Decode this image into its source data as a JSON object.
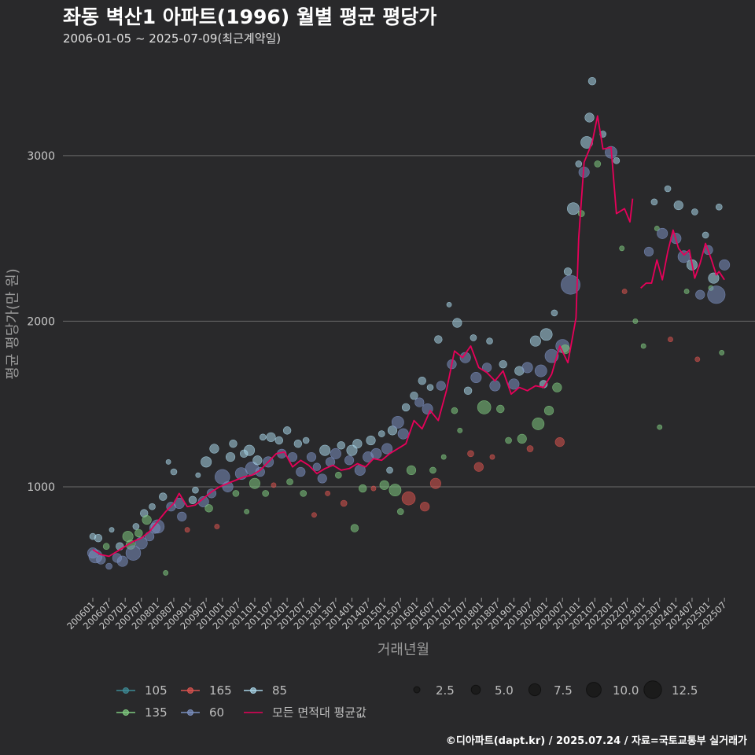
{
  "header": {
    "title": "좌동 벽산1 아파트(1996) 월별 평균 평당가",
    "subtitle": "2006-01-05 ~ 2025-07-09(최근계약일)"
  },
  "caption": "©디아파트(dapt.kr) / 2025.07.24 / 자료=국토교통부 실거래가",
  "chart_data": {
    "type": "scatter",
    "xlabel": "거래년월",
    "ylabel": "평균 평당가(만 원)",
    "ylim": [
      330,
      3560
    ],
    "yticks": [
      1000,
      2000,
      3000
    ],
    "grid": true,
    "x_range": [
      "2006-01",
      "2025-09"
    ],
    "x_ticks": [
      "200601",
      "200607",
      "200701",
      "200707",
      "200801",
      "200807",
      "200901",
      "200907",
      "201001",
      "201007",
      "201101",
      "201107",
      "201201",
      "201207",
      "201301",
      "201307",
      "201401",
      "201407",
      "201501",
      "201507",
      "201601",
      "201607",
      "201701",
      "201707",
      "201801",
      "201807",
      "201901",
      "201907",
      "202001",
      "202007",
      "202101",
      "202107",
      "202201",
      "202207",
      "202301",
      "202307",
      "202401",
      "202407",
      "202501",
      "202507"
    ],
    "legend_position": "bottom",
    "series": [
      {
        "name": "105",
        "color": "#3d8a96"
      },
      {
        "name": "135",
        "color": "#7fc97f"
      },
      {
        "name": "165",
        "color": "#d9534f"
      },
      {
        "name": "60",
        "color": "#7b8fbf"
      },
      {
        "name": "85",
        "color": "#a7d3e6"
      },
      {
        "name": "모든 면적대 평균값",
        "color": "#e8005a"
      }
    ],
    "size_legend": [
      2.5,
      5.0,
      7.5,
      10.0,
      12.5
    ],
    "points": [
      [
        "2006-01",
        600,
        "60",
        6
      ],
      [
        "2006-01",
        700,
        "85",
        3
      ],
      [
        "2006-02",
        580,
        "60",
        8
      ],
      [
        "2006-03",
        690,
        "85",
        4
      ],
      [
        "2006-04",
        560,
        "60",
        5
      ],
      [
        "2006-06",
        640,
        "135",
        3
      ],
      [
        "2006-07",
        520,
        "60",
        3
      ],
      [
        "2006-08",
        740,
        "85",
        2
      ],
      [
        "2006-10",
        570,
        "60",
        5
      ],
      [
        "2006-11",
        640,
        "85",
        4
      ],
      [
        "2006-12",
        550,
        "60",
        6
      ],
      [
        "2007-02",
        700,
        "135",
        6
      ],
      [
        "2007-03",
        650,
        "135",
        5
      ],
      [
        "2007-04",
        600,
        "60",
        9
      ],
      [
        "2007-05",
        760,
        "85",
        3
      ],
      [
        "2007-06",
        720,
        "135",
        4
      ],
      [
        "2007-07",
        660,
        "60",
        7
      ],
      [
        "2007-08",
        840,
        "85",
        4
      ],
      [
        "2007-09",
        800,
        "135",
        5
      ],
      [
        "2007-10",
        700,
        "60",
        5
      ],
      [
        "2007-11",
        880,
        "85",
        3
      ],
      [
        "2007-12",
        750,
        "60",
        6
      ],
      [
        "2008-01",
        760,
        "60",
        8
      ],
      [
        "2008-03",
        940,
        "85",
        4
      ],
      [
        "2008-04",
        480,
        "135",
        2
      ],
      [
        "2008-05",
        1150,
        "85",
        2
      ],
      [
        "2008-06",
        880,
        "60",
        5
      ],
      [
        "2008-07",
        1090,
        "85",
        3
      ],
      [
        "2008-09",
        900,
        "60",
        6
      ],
      [
        "2008-10",
        820,
        "60",
        5
      ],
      [
        "2008-12",
        740,
        "165",
        2
      ],
      [
        "2009-02",
        920,
        "85",
        4
      ],
      [
        "2009-03",
        980,
        "85",
        3
      ],
      [
        "2009-04",
        1070,
        "85",
        2
      ],
      [
        "2009-06",
        910,
        "60",
        6
      ],
      [
        "2009-07",
        1150,
        "85",
        6
      ],
      [
        "2009-08",
        870,
        "135",
        4
      ],
      [
        "2009-09",
        960,
        "60",
        5
      ],
      [
        "2009-10",
        1230,
        "85",
        5
      ],
      [
        "2009-11",
        760,
        "165",
        2
      ],
      [
        "2010-01",
        1060,
        "60",
        9
      ],
      [
        "2010-03",
        1000,
        "60",
        6
      ],
      [
        "2010-04",
        1180,
        "85",
        5
      ],
      [
        "2010-05",
        1260,
        "85",
        4
      ],
      [
        "2010-06",
        960,
        "135",
        3
      ],
      [
        "2010-08",
        1080,
        "60",
        7
      ],
      [
        "2010-09",
        1200,
        "85",
        4
      ],
      [
        "2010-10",
        850,
        "135",
        2
      ],
      [
        "2010-11",
        1220,
        "85",
        6
      ],
      [
        "2010-12",
        1110,
        "60",
        8
      ],
      [
        "2011-01",
        1020,
        "135",
        6
      ],
      [
        "2011-02",
        1160,
        "85",
        5
      ],
      [
        "2011-03",
        1090,
        "60",
        5
      ],
      [
        "2011-04",
        1300,
        "85",
        3
      ],
      [
        "2011-05",
        960,
        "135",
        3
      ],
      [
        "2011-06",
        1150,
        "60",
        6
      ],
      [
        "2011-07",
        1300,
        "85",
        5
      ],
      [
        "2011-08",
        1010,
        "165",
        2
      ],
      [
        "2011-10",
        1280,
        "85",
        4
      ],
      [
        "2011-11",
        1200,
        "60",
        5
      ],
      [
        "2012-01",
        1340,
        "85",
        4
      ],
      [
        "2012-02",
        1030,
        "135",
        3
      ],
      [
        "2012-03",
        1180,
        "60",
        5
      ],
      [
        "2012-05",
        1260,
        "85",
        4
      ],
      [
        "2012-06",
        1090,
        "60",
        5
      ],
      [
        "2012-07",
        960,
        "135",
        3
      ],
      [
        "2012-08",
        1280,
        "85",
        3
      ],
      [
        "2012-10",
        1180,
        "60",
        5
      ],
      [
        "2012-11",
        830,
        "165",
        2
      ],
      [
        "2012-12",
        1120,
        "60",
        4
      ],
      [
        "2013-02",
        1050,
        "60",
        5
      ],
      [
        "2013-03",
        1220,
        "85",
        6
      ],
      [
        "2013-04",
        960,
        "165",
        2
      ],
      [
        "2013-05",
        1150,
        "60",
        5
      ],
      [
        "2013-07",
        1200,
        "60",
        6
      ],
      [
        "2013-08",
        1070,
        "135",
        3
      ],
      [
        "2013-09",
        1250,
        "85",
        4
      ],
      [
        "2013-10",
        900,
        "165",
        3
      ],
      [
        "2013-12",
        1160,
        "60",
        5
      ],
      [
        "2014-01",
        1220,
        "85",
        6
      ],
      [
        "2014-02",
        750,
        "135",
        4
      ],
      [
        "2014-03",
        1260,
        "85",
        5
      ],
      [
        "2014-04",
        1100,
        "60",
        6
      ],
      [
        "2014-05",
        990,
        "135",
        4
      ],
      [
        "2014-07",
        1180,
        "60",
        6
      ],
      [
        "2014-08",
        1280,
        "85",
        5
      ],
      [
        "2014-09",
        990,
        "165",
        2
      ],
      [
        "2014-10",
        1200,
        "60",
        6
      ],
      [
        "2014-12",
        1320,
        "85",
        3
      ],
      [
        "2015-01",
        1010,
        "135",
        5
      ],
      [
        "2015-02",
        1230,
        "60",
        6
      ],
      [
        "2015-03",
        1100,
        "85",
        3
      ],
      [
        "2015-04",
        1340,
        "85",
        5
      ],
      [
        "2015-05",
        980,
        "135",
        7
      ],
      [
        "2015-06",
        1390,
        "60",
        7
      ],
      [
        "2015-07",
        850,
        "135",
        3
      ],
      [
        "2015-08",
        1320,
        "60",
        6
      ],
      [
        "2015-09",
        1480,
        "85",
        4
      ],
      [
        "2015-10",
        930,
        "165",
        8
      ],
      [
        "2015-11",
        1100,
        "135",
        5
      ],
      [
        "2015-12",
        1550,
        "85",
        4
      ],
      [
        "2016-02",
        1510,
        "60",
        5
      ],
      [
        "2016-03",
        1640,
        "85",
        4
      ],
      [
        "2016-04",
        880,
        "165",
        5
      ],
      [
        "2016-05",
        1470,
        "60",
        6
      ],
      [
        "2016-06",
        1600,
        "85",
        3
      ],
      [
        "2016-07",
        1100,
        "135",
        3
      ],
      [
        "2016-08",
        1020,
        "165",
        6
      ],
      [
        "2016-09",
        1890,
        "85",
        4
      ],
      [
        "2016-10",
        1610,
        "60",
        5
      ],
      [
        "2016-11",
        1180,
        "135",
        2
      ],
      [
        "2017-01",
        2100,
        "85",
        2
      ],
      [
        "2017-02",
        1740,
        "60",
        5
      ],
      [
        "2017-03",
        1460,
        "135",
        3
      ],
      [
        "2017-04",
        1990,
        "85",
        5
      ],
      [
        "2017-05",
        1340,
        "135",
        2
      ],
      [
        "2017-07",
        1780,
        "60",
        6
      ],
      [
        "2017-08",
        1580,
        "85",
        4
      ],
      [
        "2017-09",
        1200,
        "165",
        3
      ],
      [
        "2017-10",
        1900,
        "85",
        3
      ],
      [
        "2017-11",
        1660,
        "60",
        6
      ],
      [
        "2017-12",
        1120,
        "165",
        5
      ],
      [
        "2018-02",
        1480,
        "135",
        8
      ],
      [
        "2018-03",
        1720,
        "60",
        5
      ],
      [
        "2018-04",
        1880,
        "85",
        3
      ],
      [
        "2018-05",
        1180,
        "165",
        2
      ],
      [
        "2018-06",
        1610,
        "60",
        6
      ],
      [
        "2018-08",
        1470,
        "135",
        4
      ],
      [
        "2018-09",
        1740,
        "85",
        4
      ],
      [
        "2018-11",
        1280,
        "135",
        3
      ],
      [
        "2019-01",
        1620,
        "60",
        6
      ],
      [
        "2019-03",
        1700,
        "85",
        5
      ],
      [
        "2019-04",
        1290,
        "135",
        5
      ],
      [
        "2019-06",
        1720,
        "60",
        6
      ],
      [
        "2019-07",
        1230,
        "165",
        3
      ],
      [
        "2019-09",
        1880,
        "85",
        6
      ],
      [
        "2019-10",
        1380,
        "135",
        7
      ],
      [
        "2019-11",
        1700,
        "60",
        7
      ],
      [
        "2019-12",
        1620,
        "85",
        4
      ],
      [
        "2020-01",
        1920,
        "85",
        7
      ],
      [
        "2020-02",
        1460,
        "135",
        5
      ],
      [
        "2020-03",
        1790,
        "60",
        8
      ],
      [
        "2020-04",
        2050,
        "85",
        3
      ],
      [
        "2020-05",
        1600,
        "135",
        5
      ],
      [
        "2020-06",
        1270,
        "165",
        5
      ],
      [
        "2020-07",
        1850,
        "60",
        8
      ],
      [
        "2020-08",
        1830,
        "135",
        5
      ],
      [
        "2020-09",
        2300,
        "85",
        4
      ],
      [
        "2020-10",
        2220,
        "60",
        12
      ],
      [
        "2020-11",
        2680,
        "85",
        7
      ],
      [
        "2021-01",
        2950,
        "85",
        3
      ],
      [
        "2021-02",
        2650,
        "135",
        3
      ],
      [
        "2021-03",
        2900,
        "60",
        6
      ],
      [
        "2021-04",
        3080,
        "85",
        7
      ],
      [
        "2021-05",
        3230,
        "85",
        5
      ],
      [
        "2021-06",
        3450,
        "85",
        4
      ],
      [
        "2021-08",
        2950,
        "135",
        3
      ],
      [
        "2021-10",
        3130,
        "85",
        3
      ],
      [
        "2022-01",
        3020,
        "60",
        7
      ],
      [
        "2022-03",
        2970,
        "85",
        3
      ],
      [
        "2022-05",
        2440,
        "135",
        2
      ],
      [
        "2022-06",
        2180,
        "165",
        2
      ],
      [
        "2022-10",
        2000,
        "135",
        2
      ],
      [
        "2023-01",
        1850,
        "135",
        2
      ],
      [
        "2023-03",
        2420,
        "60",
        5
      ],
      [
        "2023-05",
        2720,
        "85",
        3
      ],
      [
        "2023-06",
        2560,
        "135",
        2
      ],
      [
        "2023-07",
        1360,
        "135",
        2
      ],
      [
        "2023-08",
        2530,
        "60",
        6
      ],
      [
        "2023-10",
        2800,
        "85",
        3
      ],
      [
        "2023-11",
        1890,
        "165",
        2
      ],
      [
        "2024-01",
        2500,
        "60",
        6
      ],
      [
        "2024-02",
        2700,
        "85",
        5
      ],
      [
        "2024-04",
        2390,
        "60",
        7
      ],
      [
        "2024-05",
        2180,
        "135",
        2
      ],
      [
        "2024-07",
        2340,
        "85",
        6
      ],
      [
        "2024-08",
        2660,
        "85",
        3
      ],
      [
        "2024-09",
        1770,
        "165",
        2
      ],
      [
        "2024-10",
        2160,
        "60",
        5
      ],
      [
        "2024-12",
        2520,
        "85",
        3
      ],
      [
        "2025-01",
        2430,
        "60",
        5
      ],
      [
        "2025-02",
        2200,
        "135",
        2
      ],
      [
        "2025-03",
        2260,
        "85",
        6
      ],
      [
        "2025-04",
        2160,
        "60",
        11
      ],
      [
        "2025-05",
        2690,
        "85",
        3
      ],
      [
        "2025-06",
        1810,
        "135",
        2
      ],
      [
        "2025-07",
        2340,
        "60",
        6
      ]
    ],
    "avg_line": [
      [
        "2006-01",
        620
      ],
      [
        "2006-04",
        590
      ],
      [
        "2006-07",
        580
      ],
      [
        "2006-10",
        610
      ],
      [
        "2007-01",
        640
      ],
      [
        "2007-04",
        670
      ],
      [
        "2007-07",
        690
      ],
      [
        "2007-10",
        730
      ],
      [
        "2008-01",
        790
      ],
      [
        "2008-04",
        850
      ],
      [
        "2008-07",
        900
      ],
      [
        "2008-09",
        960
      ],
      [
        "2008-12",
        880
      ],
      [
        "2009-03",
        890
      ],
      [
        "2009-06",
        930
      ],
      [
        "2009-09",
        970
      ],
      [
        "2009-12",
        1000
      ],
      [
        "2010-03",
        1020
      ],
      [
        "2010-06",
        1040
      ],
      [
        "2010-09",
        1060
      ],
      [
        "2010-12",
        1070
      ],
      [
        "2011-03",
        1100
      ],
      [
        "2011-06",
        1150
      ],
      [
        "2011-09",
        1200
      ],
      [
        "2011-12",
        1210
      ],
      [
        "2012-03",
        1120
      ],
      [
        "2012-06",
        1160
      ],
      [
        "2012-09",
        1130
      ],
      [
        "2012-12",
        1080
      ],
      [
        "2013-03",
        1110
      ],
      [
        "2013-06",
        1130
      ],
      [
        "2013-09",
        1100
      ],
      [
        "2013-12",
        1110
      ],
      [
        "2014-03",
        1140
      ],
      [
        "2014-06",
        1120
      ],
      [
        "2014-09",
        1170
      ],
      [
        "2014-12",
        1160
      ],
      [
        "2015-03",
        1200
      ],
      [
        "2015-06",
        1230
      ],
      [
        "2015-09",
        1260
      ],
      [
        "2015-12",
        1400
      ],
      [
        "2016-03",
        1350
      ],
      [
        "2016-06",
        1460
      ],
      [
        "2016-09",
        1400
      ],
      [
        "2016-12",
        1580
      ],
      [
        "2017-03",
        1820
      ],
      [
        "2017-06",
        1780
      ],
      [
        "2017-09",
        1850
      ],
      [
        "2017-12",
        1720
      ],
      [
        "2018-03",
        1690
      ],
      [
        "2018-06",
        1640
      ],
      [
        "2018-09",
        1700
      ],
      [
        "2018-12",
        1560
      ],
      [
        "2019-03",
        1600
      ],
      [
        "2019-06",
        1580
      ],
      [
        "2019-09",
        1610
      ],
      [
        "2019-12",
        1600
      ],
      [
        "2020-03",
        1680
      ],
      [
        "2020-06",
        1850
      ],
      [
        "2020-09",
        1750
      ],
      [
        "2020-12",
        2020
      ],
      [
        "2021-01",
        2500
      ],
      [
        "2021-03",
        2960
      ],
      [
        "2021-06",
        3080
      ],
      [
        "2021-08",
        3240
      ],
      [
        "2021-10",
        3040
      ],
      [
        "2022-01",
        3050
      ],
      [
        "2022-03",
        2650
      ],
      [
        "2022-06",
        2680
      ],
      [
        "2022-08",
        2600
      ],
      [
        "2022-09",
        2740
      ],
      [
        "GAP",
        0
      ],
      [
        "2022-12",
        2200
      ],
      [
        "2023-02",
        2230
      ],
      [
        "2023-04",
        2230
      ],
      [
        "2023-06",
        2370
      ],
      [
        "2023-08",
        2250
      ],
      [
        "2023-10",
        2420
      ],
      [
        "2023-12",
        2550
      ],
      [
        "2024-02",
        2440
      ],
      [
        "2024-04",
        2400
      ],
      [
        "2024-06",
        2430
      ],
      [
        "2024-08",
        2260
      ],
      [
        "2024-10",
        2350
      ],
      [
        "2024-12",
        2470
      ],
      [
        "2025-02",
        2380
      ],
      [
        "2025-04",
        2280
      ],
      [
        "2025-05",
        2300
      ],
      [
        "2025-07",
        2250
      ]
    ]
  }
}
